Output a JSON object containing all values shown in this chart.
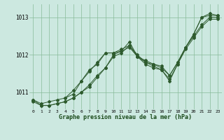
{
  "xlabel": "Graphe pression niveau de la mer (hPa)",
  "bg_color": "#cce8e0",
  "grid_color": "#88bb99",
  "line_color": "#2d5a2d",
  "xlim": [
    -0.5,
    23.5
  ],
  "ylim": [
    1010.55,
    1013.35
  ],
  "yticks": [
    1011,
    1012,
    1013
  ],
  "xtick_fontsize": 4.5,
  "ytick_fontsize": 5.5,
  "xlabel_fontsize": 6.0,
  "lines": [
    {
      "x": [
        0,
        1,
        2,
        3,
        4,
        5,
        6,
        7,
        8,
        9,
        10,
        11,
        12,
        13,
        14,
        15,
        16,
        17,
        18,
        19,
        20,
        21,
        22,
        23
      ],
      "y": [
        1010.8,
        1010.7,
        1010.75,
        1010.8,
        1010.85,
        1010.95,
        1011.3,
        1011.6,
        1011.75,
        1012.05,
        1012.05,
        1012.15,
        1012.25,
        1011.95,
        1011.85,
        1011.75,
        1011.7,
        1011.45,
        1011.8,
        1012.2,
        1012.55,
        1013.0,
        1013.05,
        1013.05
      ]
    },
    {
      "x": [
        0,
        1,
        2,
        3,
        4,
        5,
        6,
        7,
        8,
        9,
        10,
        11,
        12,
        13,
        14,
        15,
        16,
        17,
        18,
        19,
        20,
        21,
        22,
        23
      ],
      "y": [
        1010.8,
        1010.65,
        1010.65,
        1010.7,
        1010.75,
        1010.85,
        1011.0,
        1011.2,
        1011.45,
        1011.65,
        1012.0,
        1012.1,
        1012.35,
        1011.95,
        1011.75,
        1011.65,
        1011.6,
        1011.3,
        1011.75,
        1012.15,
        1012.45,
        1012.75,
        1012.95,
        1012.95
      ]
    },
    {
      "x": [
        0,
        1,
        2,
        3,
        4,
        5,
        6,
        7,
        8,
        9,
        10,
        11,
        12,
        13,
        14,
        15,
        16,
        17,
        18,
        19,
        20,
        21,
        22,
        23
      ],
      "y": [
        1010.75,
        1010.65,
        1010.65,
        1010.7,
        1010.75,
        1010.85,
        1011.0,
        1011.15,
        1011.4,
        1011.65,
        1011.95,
        1012.05,
        1012.25,
        1012.0,
        1011.8,
        1011.7,
        1011.6,
        1011.35,
        1011.75,
        1012.2,
        1012.5,
        1012.8,
        1013.0,
        1013.0
      ]
    },
    {
      "x": [
        4,
        5,
        6,
        7,
        8,
        9,
        10,
        11,
        12,
        13,
        14,
        15,
        16,
        17,
        18,
        19,
        20,
        21,
        22,
        23
      ],
      "y": [
        1010.85,
        1011.05,
        1011.3,
        1011.55,
        1011.8,
        1012.05,
        1012.05,
        1012.1,
        1012.2,
        1011.95,
        1011.8,
        1011.75,
        1011.65,
        1011.45,
        1011.8,
        1012.2,
        1012.55,
        1013.0,
        1013.1,
        1013.05
      ]
    }
  ]
}
